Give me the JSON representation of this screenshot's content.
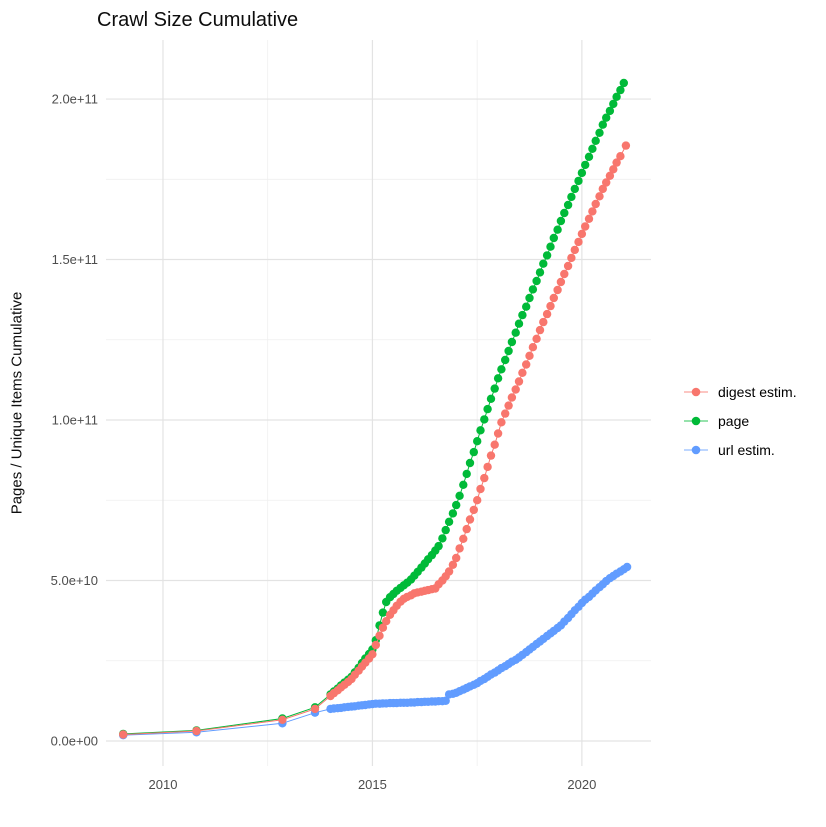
{
  "chart_data": {
    "type": "scatter",
    "mode": "points+lines",
    "title": "Crawl Size Cumulative",
    "xlabel": "",
    "ylabel": "Pages / Unique Items Cumulative",
    "grid": true,
    "legend_position": "right-center",
    "value_scale": 1000000000.0,
    "value_scale_note": "point values are billions; multiply by 1e9 for axis units",
    "xlim": [
      2008.64,
      2021.65
    ],
    "ylim_billions": [
      -7.8,
      218.4
    ],
    "x_ticks": [
      2010,
      2015,
      2020
    ],
    "x_tick_labels": [
      "2010",
      "2015",
      "2020"
    ],
    "x_minor_ticks": [
      2012.5,
      2017.5
    ],
    "y_ticks_billions": [
      0,
      50,
      100,
      150,
      200
    ],
    "y_tick_labels": [
      "0.0e+00",
      "5.0e+10",
      "1.0e+11",
      "1.5e+11",
      "2.0e+11"
    ],
    "y_minor_ticks_billions": [
      25,
      75,
      125,
      175
    ],
    "grid_major_color": "#e3e3e3",
    "grid_minor_color": "#efefef",
    "series": [
      {
        "name": "digest estim.",
        "color": "#F8766D",
        "points": [
          [
            2009.05,
            2.0
          ],
          [
            2010.8,
            3.1
          ],
          [
            2012.85,
            6.6
          ],
          [
            2013.63,
            10.0
          ],
          [
            2014.0,
            14.0
          ],
          [
            2014.08,
            14.9
          ],
          [
            2014.17,
            15.8
          ],
          [
            2014.25,
            16.7
          ],
          [
            2014.33,
            17.5
          ],
          [
            2014.42,
            18.4
          ],
          [
            2014.5,
            19.3
          ],
          [
            2014.58,
            20.6
          ],
          [
            2014.67,
            21.9
          ],
          [
            2014.75,
            23.2
          ],
          [
            2014.83,
            24.4
          ],
          [
            2014.92,
            25.7
          ],
          [
            2015.0,
            27.0
          ],
          [
            2015.08,
            29.9
          ],
          [
            2015.17,
            32.8
          ],
          [
            2015.25,
            35.3
          ],
          [
            2015.33,
            37.3
          ],
          [
            2015.42,
            39.3
          ],
          [
            2015.5,
            40.7
          ],
          [
            2015.58,
            42.1
          ],
          [
            2015.67,
            43.4
          ],
          [
            2015.75,
            44.3
          ],
          [
            2015.83,
            44.9
          ],
          [
            2015.92,
            45.4
          ],
          [
            2016.0,
            46.0
          ],
          [
            2016.08,
            46.3
          ],
          [
            2016.17,
            46.5
          ],
          [
            2016.25,
            46.8
          ],
          [
            2016.33,
            47.0
          ],
          [
            2016.42,
            47.3
          ],
          [
            2016.5,
            47.5
          ],
          [
            2016.58,
            48.8
          ],
          [
            2016.67,
            50.0
          ],
          [
            2016.75,
            51.3
          ],
          [
            2016.83,
            52.8
          ],
          [
            2016.92,
            54.9
          ],
          [
            2017.0,
            57.0
          ],
          [
            2017.08,
            60.0
          ],
          [
            2017.17,
            63.0
          ],
          [
            2017.25,
            66.0
          ],
          [
            2017.33,
            69.0
          ],
          [
            2017.42,
            72.0
          ],
          [
            2017.5,
            75.0
          ],
          [
            2017.58,
            78.5
          ],
          [
            2017.67,
            81.9
          ],
          [
            2017.75,
            85.4
          ],
          [
            2017.83,
            88.9
          ],
          [
            2017.92,
            92.3
          ],
          [
            2018.0,
            95.8
          ],
          [
            2018.08,
            99.3
          ],
          [
            2018.17,
            102.0
          ],
          [
            2018.25,
            104.5
          ],
          [
            2018.33,
            107.0
          ],
          [
            2018.42,
            109.5
          ],
          [
            2018.5,
            112.0
          ],
          [
            2018.58,
            114.7
          ],
          [
            2018.67,
            117.3
          ],
          [
            2018.75,
            120.0
          ],
          [
            2018.83,
            122.7
          ],
          [
            2018.92,
            125.3
          ],
          [
            2019.0,
            128.0
          ],
          [
            2019.08,
            130.5
          ],
          [
            2019.17,
            133.0
          ],
          [
            2019.25,
            135.5
          ],
          [
            2019.33,
            138.0
          ],
          [
            2019.42,
            140.5
          ],
          [
            2019.5,
            143.0
          ],
          [
            2019.58,
            145.5
          ],
          [
            2019.67,
            148.0
          ],
          [
            2019.75,
            150.5
          ],
          [
            2019.83,
            153.0
          ],
          [
            2019.92,
            155.5
          ],
          [
            2020.0,
            158.0
          ],
          [
            2020.08,
            160.3
          ],
          [
            2020.17,
            162.7
          ],
          [
            2020.25,
            165.0
          ],
          [
            2020.33,
            167.3
          ],
          [
            2020.42,
            169.7
          ],
          [
            2020.5,
            172.0
          ],
          [
            2020.58,
            174.0
          ],
          [
            2020.67,
            176.1
          ],
          [
            2020.75,
            178.1
          ],
          [
            2020.83,
            180.2
          ],
          [
            2020.92,
            182.2
          ],
          [
            2021.05,
            185.5
          ]
        ]
      },
      {
        "name": "page",
        "color": "#00BA38",
        "points": [
          [
            2009.05,
            2.2
          ],
          [
            2010.8,
            3.3
          ],
          [
            2012.85,
            7.0
          ],
          [
            2013.63,
            10.5
          ],
          [
            2014.0,
            14.5
          ],
          [
            2014.08,
            15.4
          ],
          [
            2014.17,
            16.3
          ],
          [
            2014.25,
            17.3
          ],
          [
            2014.33,
            18.2
          ],
          [
            2014.42,
            19.1
          ],
          [
            2014.5,
            20.0
          ],
          [
            2014.58,
            21.4
          ],
          [
            2014.67,
            22.8
          ],
          [
            2014.75,
            24.3
          ],
          [
            2014.83,
            25.7
          ],
          [
            2014.92,
            27.1
          ],
          [
            2015.0,
            28.5
          ],
          [
            2015.08,
            31.4
          ],
          [
            2015.17,
            36.0
          ],
          [
            2015.25,
            40.0
          ],
          [
            2015.33,
            43.3
          ],
          [
            2015.42,
            44.8
          ],
          [
            2015.5,
            45.8
          ],
          [
            2015.58,
            46.8
          ],
          [
            2015.67,
            47.7
          ],
          [
            2015.75,
            48.5
          ],
          [
            2015.83,
            49.3
          ],
          [
            2015.92,
            50.3
          ],
          [
            2016.0,
            51.5
          ],
          [
            2016.08,
            52.7
          ],
          [
            2016.17,
            54.0
          ],
          [
            2016.25,
            55.3
          ],
          [
            2016.33,
            56.6
          ],
          [
            2016.42,
            57.9
          ],
          [
            2016.5,
            59.3
          ],
          [
            2016.58,
            60.7
          ],
          [
            2016.67,
            63.1
          ],
          [
            2016.75,
            65.7
          ],
          [
            2016.83,
            68.3
          ],
          [
            2016.92,
            70.9
          ],
          [
            2017.0,
            73.5
          ],
          [
            2017.08,
            76.4
          ],
          [
            2017.17,
            79.8
          ],
          [
            2017.25,
            83.2
          ],
          [
            2017.33,
            86.6
          ],
          [
            2017.42,
            90.0
          ],
          [
            2017.5,
            93.4
          ],
          [
            2017.58,
            96.8
          ],
          [
            2017.67,
            100.2
          ],
          [
            2017.75,
            103.4
          ],
          [
            2017.83,
            106.6
          ],
          [
            2017.92,
            109.8
          ],
          [
            2018.0,
            113.0
          ],
          [
            2018.08,
            115.8
          ],
          [
            2018.17,
            118.7
          ],
          [
            2018.25,
            121.5
          ],
          [
            2018.33,
            124.3
          ],
          [
            2018.42,
            127.2
          ],
          [
            2018.5,
            130.0
          ],
          [
            2018.58,
            132.7
          ],
          [
            2018.67,
            135.3
          ],
          [
            2018.75,
            138.0
          ],
          [
            2018.83,
            140.7
          ],
          [
            2018.92,
            143.3
          ],
          [
            2019.0,
            146.0
          ],
          [
            2019.08,
            148.7
          ],
          [
            2019.17,
            151.3
          ],
          [
            2019.25,
            154.0
          ],
          [
            2019.33,
            156.7
          ],
          [
            2019.42,
            159.3
          ],
          [
            2019.5,
            162.0
          ],
          [
            2019.58,
            164.5
          ],
          [
            2019.67,
            167.0
          ],
          [
            2019.75,
            169.5
          ],
          [
            2019.83,
            172.0
          ],
          [
            2019.92,
            174.5
          ],
          [
            2020.0,
            177.0
          ],
          [
            2020.08,
            179.5
          ],
          [
            2020.17,
            182.0
          ],
          [
            2020.25,
            184.5
          ],
          [
            2020.33,
            187.0
          ],
          [
            2020.42,
            189.5
          ],
          [
            2020.5,
            192.0
          ],
          [
            2020.58,
            194.2
          ],
          [
            2020.67,
            196.3
          ],
          [
            2020.75,
            198.5
          ],
          [
            2020.83,
            200.7
          ],
          [
            2020.92,
            202.8
          ],
          [
            2021.0,
            205.0
          ]
        ]
      },
      {
        "name": "url estim.",
        "color": "#619CFF",
        "points": [
          [
            2009.05,
            1.8
          ],
          [
            2010.8,
            2.7
          ],
          [
            2012.85,
            5.5
          ],
          [
            2013.63,
            8.8
          ],
          [
            2014.0,
            10.0
          ],
          [
            2014.08,
            10.1
          ],
          [
            2014.17,
            10.2
          ],
          [
            2014.25,
            10.3
          ],
          [
            2014.33,
            10.5
          ],
          [
            2014.42,
            10.6
          ],
          [
            2014.5,
            10.7
          ],
          [
            2014.58,
            10.8
          ],
          [
            2014.67,
            11.0
          ],
          [
            2014.75,
            11.1
          ],
          [
            2014.83,
            11.2
          ],
          [
            2014.92,
            11.4
          ],
          [
            2015.0,
            11.5
          ],
          [
            2015.08,
            11.6
          ],
          [
            2015.17,
            11.6
          ],
          [
            2015.25,
            11.7
          ],
          [
            2015.33,
            11.7
          ],
          [
            2015.42,
            11.8
          ],
          [
            2015.5,
            11.8
          ],
          [
            2015.58,
            11.8
          ],
          [
            2015.67,
            11.9
          ],
          [
            2015.75,
            11.9
          ],
          [
            2015.83,
            11.9
          ],
          [
            2015.92,
            12.0
          ],
          [
            2016.0,
            12.0
          ],
          [
            2016.08,
            12.1
          ],
          [
            2016.17,
            12.1
          ],
          [
            2016.25,
            12.2
          ],
          [
            2016.33,
            12.2
          ],
          [
            2016.42,
            12.3
          ],
          [
            2016.5,
            12.3
          ],
          [
            2016.58,
            12.4
          ],
          [
            2016.67,
            12.4
          ],
          [
            2016.75,
            12.5
          ],
          [
            2016.83,
            14.5
          ],
          [
            2016.92,
            14.7
          ],
          [
            2017.0,
            15.0
          ],
          [
            2017.08,
            15.5
          ],
          [
            2017.17,
            16.0
          ],
          [
            2017.25,
            16.5
          ],
          [
            2017.33,
            17.0
          ],
          [
            2017.42,
            17.5
          ],
          [
            2017.5,
            18.0
          ],
          [
            2017.58,
            18.7
          ],
          [
            2017.67,
            19.3
          ],
          [
            2017.75,
            20.0
          ],
          [
            2017.83,
            20.7
          ],
          [
            2017.92,
            21.3
          ],
          [
            2018.0,
            22.0
          ],
          [
            2018.08,
            22.7
          ],
          [
            2018.17,
            23.3
          ],
          [
            2018.25,
            24.0
          ],
          [
            2018.33,
            24.7
          ],
          [
            2018.42,
            25.3
          ],
          [
            2018.5,
            26.0
          ],
          [
            2018.58,
            26.8
          ],
          [
            2018.67,
            27.7
          ],
          [
            2018.75,
            28.5
          ],
          [
            2018.83,
            29.3
          ],
          [
            2018.92,
            30.2
          ],
          [
            2019.0,
            31.0
          ],
          [
            2019.08,
            31.8
          ],
          [
            2019.17,
            32.7
          ],
          [
            2019.25,
            33.5
          ],
          [
            2019.33,
            34.3
          ],
          [
            2019.42,
            35.2
          ],
          [
            2019.5,
            36.0
          ],
          [
            2019.58,
            37.2
          ],
          [
            2019.67,
            38.3
          ],
          [
            2019.75,
            39.5
          ],
          [
            2019.83,
            40.7
          ],
          [
            2019.92,
            41.8
          ],
          [
            2020.0,
            43.0
          ],
          [
            2020.08,
            44.0
          ],
          [
            2020.17,
            44.9
          ],
          [
            2020.25,
            45.9
          ],
          [
            2020.33,
            46.9
          ],
          [
            2020.42,
            47.9
          ],
          [
            2020.5,
            48.8
          ],
          [
            2020.58,
            49.8
          ],
          [
            2020.67,
            50.7
          ],
          [
            2020.75,
            51.4
          ],
          [
            2020.83,
            52.1
          ],
          [
            2020.92,
            52.8
          ],
          [
            2021.0,
            53.5
          ],
          [
            2021.08,
            54.2
          ]
        ]
      }
    ],
    "legend": {
      "items": [
        {
          "label": "digest estim.",
          "color": "#F8766D"
        },
        {
          "label": "page",
          "color": "#00BA38"
        },
        {
          "label": "url estim.",
          "color": "#619CFF"
        }
      ]
    }
  }
}
